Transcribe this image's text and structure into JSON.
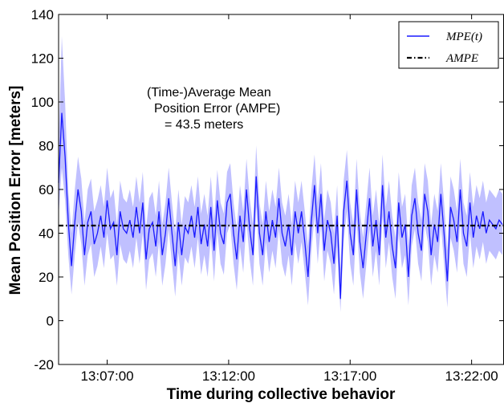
{
  "chart_data": {
    "type": "line",
    "xlabel": "Time during collective behavior",
    "ylabel": "Mean Position Error [meters]",
    "x_start": "13:05:00",
    "x_end": "13:23:20",
    "xticks": [
      "13:07:00",
      "13:12:00",
      "13:17:00",
      "13:22:00"
    ],
    "ylim": [
      -20,
      140
    ],
    "yticks": [
      -20,
      0,
      20,
      40,
      60,
      80,
      100,
      120,
      140
    ],
    "grid": false,
    "legend_position": "top-right",
    "colors": {
      "line": "#1a1aff",
      "band": "#b5b5ff",
      "ampe": "#000000"
    },
    "series": [
      {
        "name": "MPE(t)",
        "x": [
          "13:05:00",
          "13:05:08",
          "13:05:16",
          "13:05:24",
          "13:05:32",
          "13:05:40",
          "13:05:48",
          "13:05:56",
          "13:06:04",
          "13:06:12",
          "13:06:20",
          "13:06:28",
          "13:06:36",
          "13:06:44",
          "13:06:52",
          "13:07:00",
          "13:07:08",
          "13:07:16",
          "13:07:24",
          "13:07:32",
          "13:07:40",
          "13:07:48",
          "13:07:56",
          "13:08:04",
          "13:08:12",
          "13:08:20",
          "13:08:28",
          "13:08:36",
          "13:08:44",
          "13:08:52",
          "13:09:00",
          "13:09:08",
          "13:09:16",
          "13:09:24",
          "13:09:32",
          "13:09:40",
          "13:09:48",
          "13:09:56",
          "13:10:04",
          "13:10:12",
          "13:10:20",
          "13:10:28",
          "13:10:36",
          "13:10:44",
          "13:10:52",
          "13:11:00",
          "13:11:08",
          "13:11:16",
          "13:11:24",
          "13:11:32",
          "13:11:40",
          "13:11:48",
          "13:11:56",
          "13:12:04",
          "13:12:12",
          "13:12:20",
          "13:12:28",
          "13:12:36",
          "13:12:44",
          "13:12:52",
          "13:13:00",
          "13:13:08",
          "13:13:16",
          "13:13:24",
          "13:13:32",
          "13:13:40",
          "13:13:48",
          "13:13:56",
          "13:14:04",
          "13:14:12",
          "13:14:20",
          "13:14:28",
          "13:14:36",
          "13:14:44",
          "13:14:52",
          "13:15:00",
          "13:15:08",
          "13:15:16",
          "13:15:24",
          "13:15:32",
          "13:15:40",
          "13:15:48",
          "13:15:56",
          "13:16:04",
          "13:16:12",
          "13:16:20",
          "13:16:28",
          "13:16:36",
          "13:16:44",
          "13:16:52",
          "13:17:00",
          "13:17:08",
          "13:17:16",
          "13:17:24",
          "13:17:32",
          "13:17:40",
          "13:17:48",
          "13:17:56",
          "13:18:04",
          "13:18:12",
          "13:18:20",
          "13:18:28",
          "13:18:36",
          "13:18:44",
          "13:18:52",
          "13:19:00",
          "13:19:08",
          "13:19:16",
          "13:19:24",
          "13:19:32",
          "13:19:40",
          "13:19:48",
          "13:19:56",
          "13:20:04",
          "13:20:12",
          "13:20:20",
          "13:20:28",
          "13:20:36",
          "13:20:44",
          "13:20:52",
          "13:21:00",
          "13:21:08",
          "13:21:16",
          "13:21:24",
          "13:21:32",
          "13:21:40",
          "13:21:48",
          "13:21:56",
          "13:22:04",
          "13:22:12",
          "13:22:20",
          "13:22:28",
          "13:22:36",
          "13:22:44",
          "13:22:52",
          "13:23:00",
          "13:23:08",
          "13:23:16"
        ],
        "values": [
          63,
          95,
          75,
          45,
          25,
          45,
          60,
          50,
          30,
          45,
          50,
          35,
          40,
          48,
          38,
          55,
          42,
          45,
          30,
          50,
          42,
          40,
          46,
          38,
          52,
          40,
          54,
          28,
          42,
          45,
          34,
          50,
          30,
          40,
          56,
          40,
          25,
          45,
          30,
          43,
          40,
          48,
          38,
          52,
          35,
          44,
          34,
          52,
          32,
          55,
          40,
          35,
          54,
          58,
          40,
          28,
          48,
          36,
          60,
          42,
          30,
          66,
          40,
          30,
          50,
          36,
          46,
          38,
          56,
          40,
          34,
          44,
          30,
          50,
          40,
          50,
          36,
          20,
          45,
          62,
          40,
          58,
          32,
          46,
          40,
          26,
          48,
          10,
          50,
          64,
          40,
          30,
          60,
          36,
          24,
          40,
          56,
          34,
          46,
          30,
          62,
          38,
          50,
          34,
          24,
          54,
          38,
          44,
          20,
          48,
          56,
          40,
          32,
          58,
          50,
          30,
          44,
          36,
          58,
          40,
          18,
          52,
          46,
          36,
          60,
          40,
          34,
          54,
          38,
          48,
          42,
          50,
          40,
          46,
          44,
          42,
          46,
          44
        ]
      },
      {
        "name": "AMPE",
        "value": 43.5
      }
    ],
    "band": {
      "upper": [
        80,
        130,
        100,
        60,
        40,
        60,
        75,
        65,
        45,
        60,
        65,
        50,
        55,
        62,
        52,
        70,
        56,
        60,
        44,
        64,
        56,
        54,
        60,
        52,
        66,
        54,
        68,
        42,
        56,
        59,
        48,
        64,
        44,
        54,
        70,
        54,
        40,
        60,
        44,
        57,
        54,
        62,
        52,
        66,
        49,
        58,
        48,
        66,
        46,
        69,
        54,
        49,
        68,
        72,
        54,
        42,
        62,
        50,
        74,
        56,
        44,
        80,
        54,
        44,
        64,
        50,
        60,
        52,
        70,
        54,
        48,
        58,
        44,
        64,
        54,
        64,
        50,
        34,
        59,
        76,
        54,
        72,
        46,
        60,
        54,
        40,
        62,
        24,
        64,
        78,
        54,
        44,
        74,
        50,
        38,
        54,
        70,
        48,
        60,
        44,
        76,
        52,
        64,
        48,
        38,
        68,
        52,
        58,
        34,
        62,
        70,
        54,
        46,
        72,
        64,
        44,
        58,
        50,
        72,
        54,
        32,
        66,
        60,
        50,
        74,
        54,
        48,
        68,
        52,
        62,
        56,
        64,
        54,
        60,
        58,
        56,
        60,
        58
      ],
      "lower": [
        48,
        70,
        55,
        30,
        12,
        30,
        45,
        35,
        16,
        30,
        35,
        20,
        25,
        34,
        24,
        40,
        28,
        30,
        16,
        35,
        28,
        26,
        32,
        24,
        38,
        26,
        40,
        14,
        28,
        31,
        20,
        36,
        16,
        26,
        42,
        26,
        11,
        31,
        16,
        29,
        26,
        34,
        24,
        38,
        21,
        30,
        20,
        38,
        18,
        41,
        26,
        21,
        40,
        44,
        26,
        14,
        34,
        22,
        46,
        28,
        16,
        52,
        26,
        16,
        36,
        22,
        32,
        24,
        42,
        26,
        20,
        30,
        16,
        36,
        26,
        36,
        22,
        7,
        31,
        48,
        26,
        44,
        18,
        32,
        26,
        12,
        34,
        4,
        36,
        50,
        26,
        16,
        46,
        22,
        10,
        26,
        42,
        20,
        32,
        16,
        48,
        24,
        36,
        20,
        10,
        40,
        24,
        30,
        7,
        34,
        42,
        26,
        18,
        44,
        36,
        16,
        30,
        22,
        44,
        26,
        6,
        38,
        32,
        22,
        46,
        26,
        20,
        40,
        24,
        34,
        28,
        36,
        26,
        32,
        30,
        28,
        32,
        30
      ]
    },
    "annotation": [
      "(Time-)Average Mean",
      "Position Error (AMPE)",
      "= 43.5 meters"
    ]
  }
}
